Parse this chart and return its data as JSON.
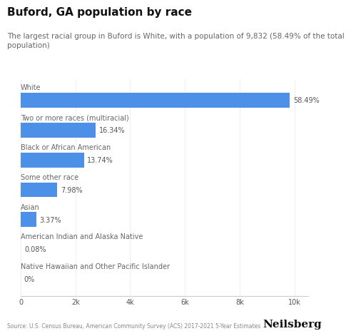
{
  "title": "Buford, GA population by race",
  "subtitle": "The largest racial group in Buford is White, with a population of 9,832 (58.49% of the total\npopulation)",
  "categories": [
    "White",
    "Two or more races (multiracial)",
    "Black or African American",
    "Some other race",
    "Asian",
    "American Indian and Alaska Native",
    "Native Hawaiian and Other Pacific Islander"
  ],
  "values": [
    9832,
    2747,
    2311,
    1342,
    567,
    13,
    0
  ],
  "percentages": [
    "58.49%",
    "16.34%",
    "13.74%",
    "7.98%",
    "3.37%",
    "0.08%",
    "0%"
  ],
  "bar_color": "#4D90E8",
  "xlim": [
    0,
    10500
  ],
  "xticks": [
    0,
    2000,
    4000,
    6000,
    8000,
    10000
  ],
  "xtick_labels": [
    "0",
    "2k",
    "4k",
    "6k",
    "8k",
    "10k"
  ],
  "source_text": "Source: U.S. Census Bureau, American Community Survey (ACS) 2017-2021 5-Year Estimates",
  "brand": "Neilsberg",
  "background_color": "#ffffff",
  "title_fontsize": 11,
  "subtitle_fontsize": 7.5,
  "category_fontsize": 7,
  "pct_fontsize": 7,
  "tick_fontsize": 7,
  "bar_height": 0.5
}
